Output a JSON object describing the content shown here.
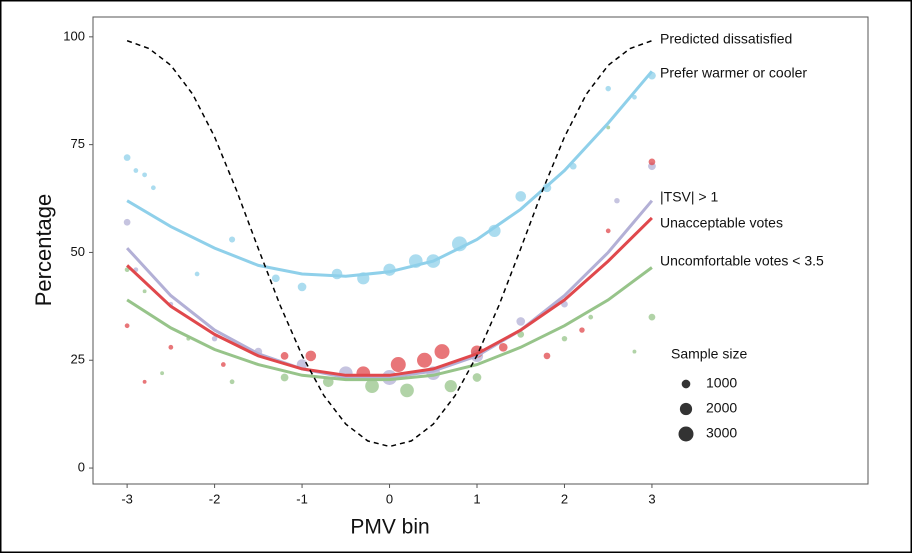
{
  "chart_data": {
    "type": "scatter",
    "xlabel": "PMV bin",
    "ylabel": "Percentage",
    "xlim": [
      -3.39,
      5.47
    ],
    "ylim": [
      -3.7,
      104.6
    ],
    "xticks": [
      -3,
      -2,
      -1,
      0,
      1,
      2,
      3
    ],
    "yticks": [
      0,
      25,
      50,
      75,
      100
    ],
    "ppd": {
      "name": "Predicted dissatisfied",
      "color": "#000000",
      "x": [
        -3,
        -2.75,
        -2.5,
        -2.25,
        -2,
        -1.75,
        -1.5,
        -1.25,
        -1,
        -0.75,
        -0.5,
        -0.25,
        0,
        0.25,
        0.5,
        0.75,
        1,
        1.25,
        1.5,
        1.75,
        2,
        2.25,
        2.5,
        2.75,
        3
      ],
      "values": [
        99.1,
        97.3,
        93.4,
        86.7,
        76.8,
        64.4,
        50.9,
        37.7,
        26.1,
        16.8,
        10.2,
        6.3,
        5,
        6.3,
        10.2,
        16.8,
        26.1,
        37.7,
        50.9,
        64.4,
        76.8,
        86.7,
        93.4,
        97.3,
        99.1
      ]
    },
    "fit_x": [
      -3,
      -2.5,
      -2,
      -1.5,
      -1,
      -0.5,
      0,
      0.5,
      1,
      1.5,
      2,
      2.5,
      3
    ],
    "series": [
      {
        "name": "Prefer warmer or cooler",
        "color": "#8fd0ea",
        "x": [
          -3,
          -2.9,
          -2.8,
          -2.7,
          -2.2,
          -1.8,
          -1.3,
          -1,
          -0.6,
          -0.3,
          0,
          0.3,
          0.5,
          0.8,
          1.2,
          1.5,
          1.8,
          2.1,
          2.5,
          2.8,
          3
        ],
        "values": [
          72,
          69,
          68,
          65,
          45,
          53,
          44,
          42,
          45,
          44,
          46,
          48,
          48,
          52,
          55,
          63,
          65,
          70,
          88,
          86,
          91
        ],
        "sizes": [
          600,
          300,
          300,
          300,
          300,
          500,
          800,
          1000,
          1500,
          2000,
          2000,
          2500,
          2500,
          3000,
          2000,
          1500,
          1000,
          600,
          400,
          300,
          800
        ],
        "fit_values": [
          62,
          56,
          51,
          47,
          45,
          44.5,
          45.5,
          48,
          53,
          60,
          69,
          80,
          92
        ]
      },
      {
        "name": "|TSV| > 1",
        "color": "#b3b0d6",
        "x": [
          -3,
          -2.9,
          -2.5,
          -2,
          -1.5,
          -1,
          -0.5,
          0,
          0.5,
          1,
          1.5,
          2,
          2.6,
          3
        ],
        "values": [
          57,
          46,
          38,
          30,
          27,
          24,
          22,
          21,
          22,
          26,
          34,
          38,
          62,
          70
        ],
        "sizes": [
          600,
          300,
          300,
          400,
          800,
          1500,
          2500,
          3000,
          2500,
          2000,
          1000,
          600,
          400,
          800
        ],
        "fit_values": [
          51,
          40,
          32,
          26.5,
          23,
          21,
          21,
          22.5,
          26,
          32,
          40,
          50,
          62
        ]
      },
      {
        "name": "Unacceptable votes",
        "color": "#e0484c",
        "x": [
          -3,
          -2.8,
          -2.5,
          -1.9,
          -1.2,
          -0.9,
          -0.3,
          0.1,
          0.4,
          0.6,
          1,
          1.3,
          1.8,
          2.2,
          2.5,
          3
        ],
        "values": [
          33,
          20,
          28,
          24,
          26,
          26,
          22,
          24,
          25,
          27,
          27,
          28,
          26,
          32,
          55,
          71
        ],
        "sizes": [
          300,
          200,
          300,
          300,
          800,
          1500,
          2500,
          3000,
          3000,
          3000,
          2000,
          1000,
          600,
          400,
          300,
          600
        ],
        "fit_values": [
          47,
          37.5,
          31,
          26,
          23,
          21.5,
          21.5,
          23,
          26.5,
          32,
          39,
          48,
          58
        ]
      },
      {
        "name": "Uncomfortable votes < 3.5",
        "color": "#97c48a",
        "x": [
          -3,
          -2.8,
          -2.6,
          -2.3,
          -1.8,
          -1.2,
          -0.7,
          -0.2,
          0.2,
          0.7,
          1,
          1.5,
          2,
          2.3,
          2.5,
          2.8,
          3
        ],
        "values": [
          46,
          41,
          22,
          30,
          20,
          21,
          20,
          19,
          18,
          19,
          21,
          31,
          30,
          35,
          79,
          27,
          35
        ],
        "sizes": [
          300,
          200,
          200,
          200,
          300,
          800,
          1500,
          2500,
          2500,
          2000,
          1000,
          600,
          400,
          300,
          200,
          200,
          600
        ],
        "fit_values": [
          39,
          32.5,
          27.5,
          24,
          21.5,
          20.5,
          20.5,
          21.5,
          24,
          28,
          33,
          39,
          46.5
        ]
      }
    ],
    "size_legend": {
      "title": "Sample size",
      "values": [
        1000,
        2000,
        3000
      ]
    }
  }
}
